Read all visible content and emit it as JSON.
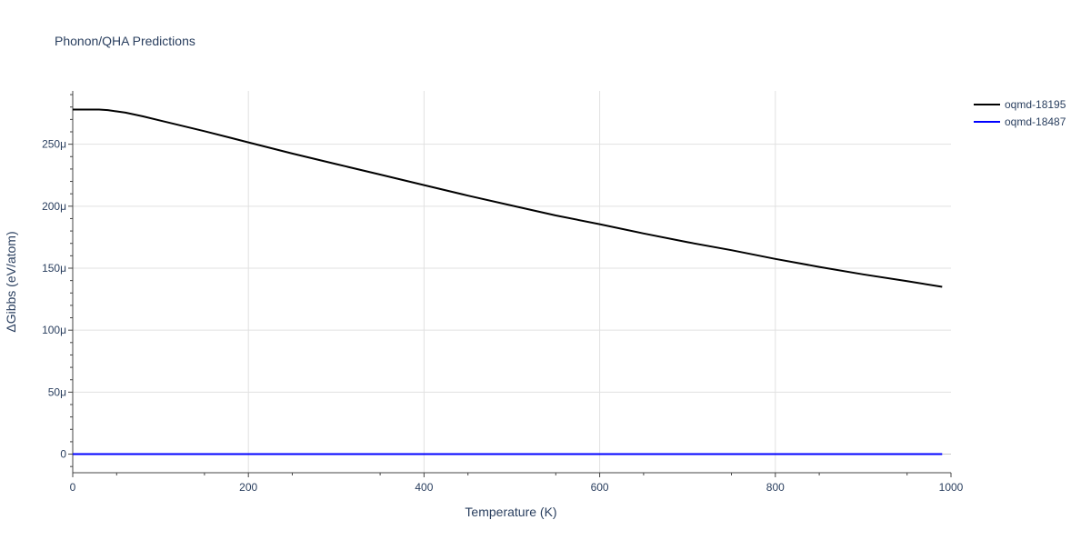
{
  "chart_data": {
    "type": "line",
    "title": "Phonon/QHA Predictions",
    "xlabel": "Temperature (K)",
    "ylabel": "ΔGibbs (eV/atom)",
    "xlim": [
      0,
      1000
    ],
    "ylim": [
      -15,
      293
    ],
    "x_ticks": [
      0,
      200,
      400,
      600,
      800,
      1000
    ],
    "x_tick_labels": [
      "0",
      "200",
      "400",
      "600",
      "800",
      "1000"
    ],
    "y_ticks": [
      0,
      50,
      100,
      150,
      200,
      250
    ],
    "y_tick_labels": [
      "0",
      "50μ",
      "100μ",
      "150μ",
      "200μ",
      "250μ"
    ],
    "y_unit_note": "values in μeV/atom (tick suffix μ)",
    "grid": true,
    "legend_position": "top-right",
    "series": [
      {
        "name": "oqmd-18195",
        "color": "#000000",
        "x": [
          0,
          10,
          20,
          30,
          40,
          50,
          60,
          80,
          100,
          150,
          200,
          250,
          300,
          350,
          400,
          450,
          500,
          550,
          600,
          650,
          700,
          750,
          800,
          850,
          900,
          950,
          990
        ],
        "y": [
          278,
          278,
          278,
          278,
          277.5,
          276.5,
          275.5,
          272.5,
          269,
          260.5,
          251.5,
          242.5,
          234,
          225.5,
          217,
          208.5,
          200.5,
          192.5,
          185.5,
          178,
          171,
          164.5,
          157.5,
          151,
          145,
          139.5,
          135
        ]
      },
      {
        "name": "oqmd-18487",
        "color": "#0000ff",
        "x": [
          0,
          990
        ],
        "y": [
          0,
          0
        ]
      }
    ]
  }
}
